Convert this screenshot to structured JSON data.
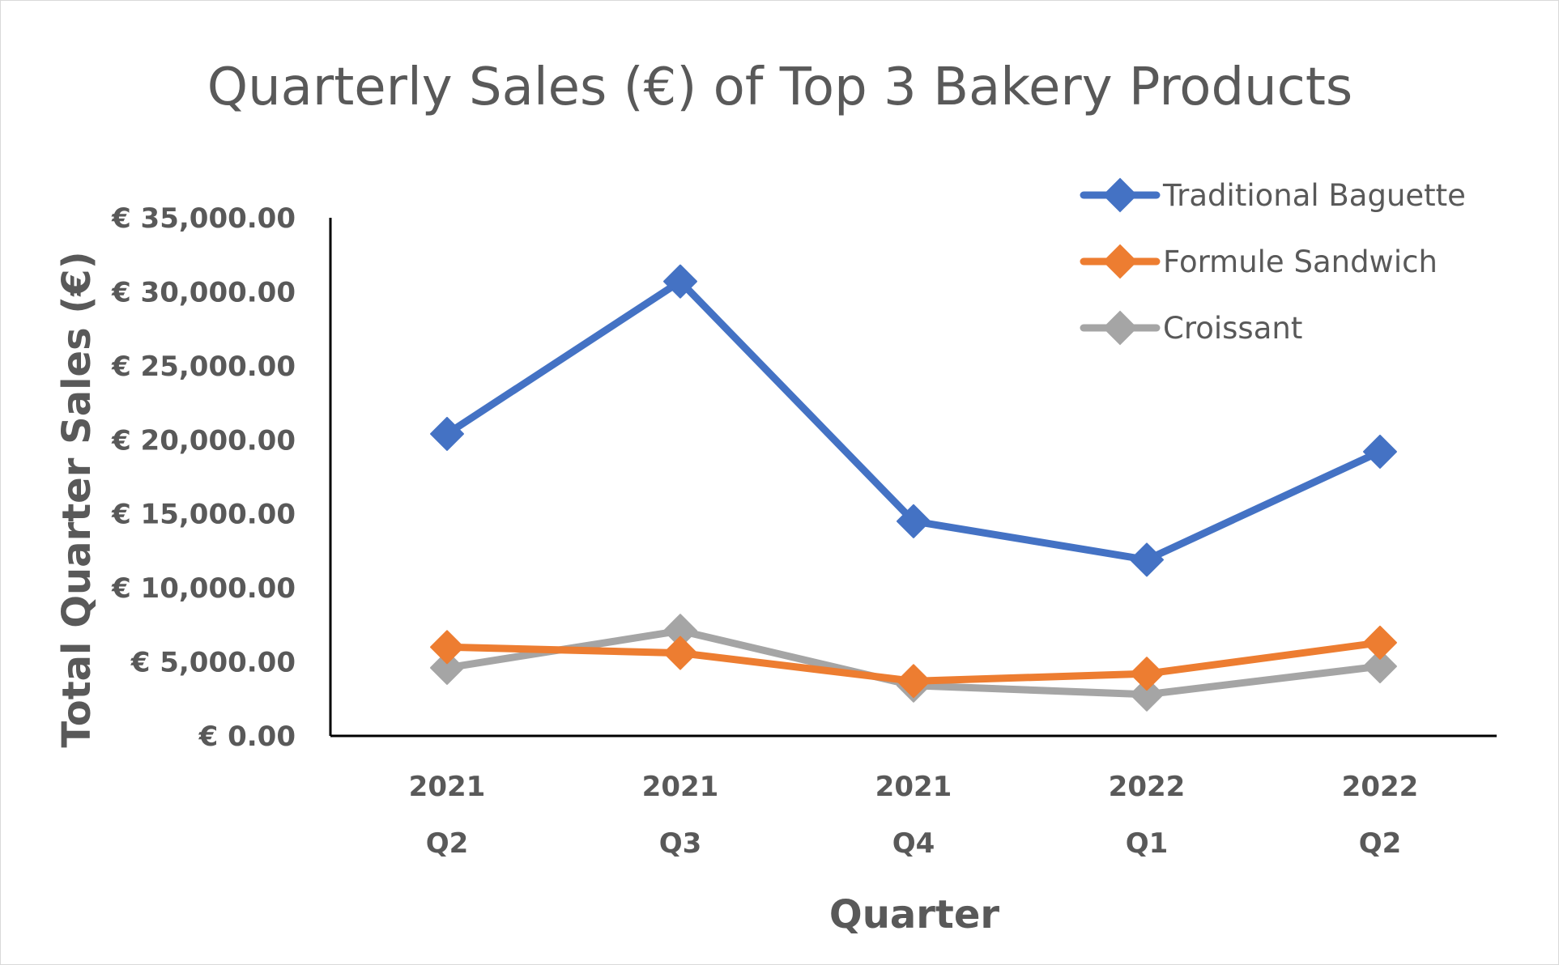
{
  "chart_data": {
    "type": "line",
    "title": "Quarterly Sales (€) of Top 3 Bakery Products",
    "xlabel": "Quarter",
    "ylabel": "Total Quarter Sales (€)",
    "categories": [
      {
        "year": "2021",
        "quarter": "Q2"
      },
      {
        "year": "2021",
        "quarter": "Q3"
      },
      {
        "year": "2021",
        "quarter": "Q4"
      },
      {
        "year": "2022",
        "quarter": "Q1"
      },
      {
        "year": "2022",
        "quarter": "Q2"
      }
    ],
    "ylim": [
      0,
      35000
    ],
    "y_ticks": [
      0,
      5000,
      10000,
      15000,
      20000,
      25000,
      30000,
      35000
    ],
    "y_tick_labels": [
      "€ 0.00",
      "€ 5,000.00",
      "€ 10,000.00",
      "€ 15,000.00",
      "€ 20,000.00",
      "€ 25,000.00",
      "€ 30,000.00",
      "€ 35,000.00"
    ],
    "grid": false,
    "legend_position": "top-right",
    "series": [
      {
        "name": "Traditional Baguette",
        "color": "#4472c4",
        "marker": "diamond",
        "values": [
          20400,
          30700,
          14500,
          11900,
          19200
        ]
      },
      {
        "name": "Formule Sandwich",
        "color": "#ed7d31",
        "marker": "diamond",
        "values": [
          6000,
          5600,
          3700,
          4200,
          6300
        ]
      },
      {
        "name": "Croissant",
        "color": "#a5a5a5",
        "marker": "diamond",
        "values": [
          4600,
          7100,
          3400,
          2800,
          4700
        ]
      }
    ]
  }
}
